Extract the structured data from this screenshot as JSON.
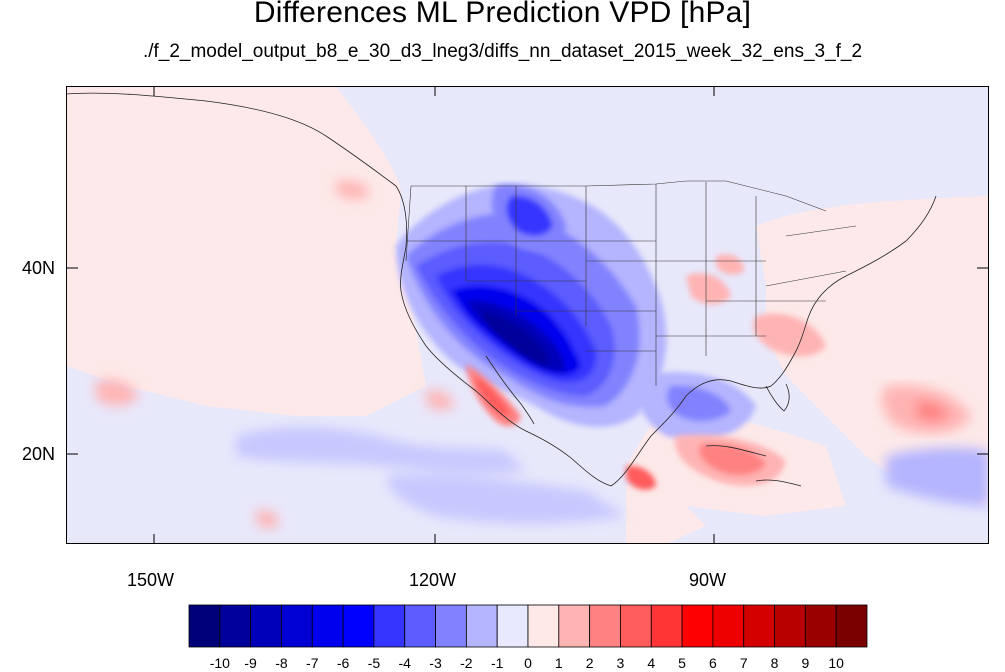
{
  "header": {
    "title": "Differences ML Prediction VPD [hPa]",
    "subtitle": "./f_2_model_output_b8_e_30_d3_lneg3/diffs_nn_dataset_2015_week_32_ens_3_f_2"
  },
  "axes": {
    "x_ticks": [
      "150W",
      "120W",
      "90W"
    ],
    "y_ticks": [
      "40N",
      "20N"
    ]
  },
  "colorbar": {
    "labels": [
      "-10",
      "-9",
      "-8",
      "-7",
      "-6",
      "-5",
      "-4",
      "-3",
      "-2",
      "-1",
      "0",
      "1",
      "2",
      "3",
      "4",
      "5",
      "6",
      "7",
      "8",
      "9",
      "10"
    ],
    "colors": [
      "#00007a",
      "#00009a",
      "#0000b8",
      "#0000d4",
      "#0000ee",
      "#0000ff",
      "#3535ff",
      "#5c5cff",
      "#8282ff",
      "#b4b4ff",
      "#e8e8ff",
      "#ffe8e8",
      "#ffb4b4",
      "#ff8282",
      "#ff5c5c",
      "#ff3535",
      "#ff0000",
      "#ee0000",
      "#d40000",
      "#b80000",
      "#9a0000",
      "#7a0000"
    ]
  },
  "palette": {
    "ocean_base": "#fde9e9",
    "land_base": "#e8e8fb",
    "boundary": "#222222"
  }
}
